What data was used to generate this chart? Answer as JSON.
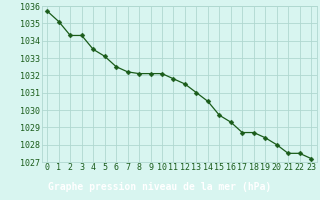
{
  "x": [
    0,
    1,
    2,
    3,
    4,
    5,
    6,
    7,
    8,
    9,
    10,
    11,
    12,
    13,
    14,
    15,
    16,
    17,
    18,
    19,
    20,
    21,
    22,
    23
  ],
  "y": [
    1035.7,
    1035.1,
    1034.3,
    1034.3,
    1033.5,
    1033.1,
    1032.5,
    1032.2,
    1032.1,
    1032.1,
    1032.1,
    1031.8,
    1031.5,
    1031.0,
    1030.5,
    1029.7,
    1029.3,
    1028.7,
    1028.7,
    1028.4,
    1028.0,
    1027.5,
    1027.5,
    1027.2
  ],
  "line_color": "#1a5c1a",
  "marker": "D",
  "marker_size": 2.5,
  "bg_color": "#d8f5f0",
  "grid_color": "#b0d8d0",
  "title": "Graphe pression niveau de la mer (hPa)",
  "title_fg": "#ffffff",
  "title_bg": "#2e7d2e",
  "ylim_min": 1027.0,
  "ylim_max": 1036.0,
  "xlim_min": -0.5,
  "xlim_max": 23.5,
  "ytick_values": [
    1027,
    1028,
    1029,
    1030,
    1031,
    1032,
    1033,
    1034,
    1035,
    1036
  ],
  "xtick_values": [
    0,
    1,
    2,
    3,
    4,
    5,
    6,
    7,
    8,
    9,
    10,
    11,
    12,
    13,
    14,
    15,
    16,
    17,
    18,
    19,
    20,
    21,
    22,
    23
  ],
  "tick_color": "#1a5c1a",
  "tick_fontsize": 6,
  "title_fontsize": 7
}
